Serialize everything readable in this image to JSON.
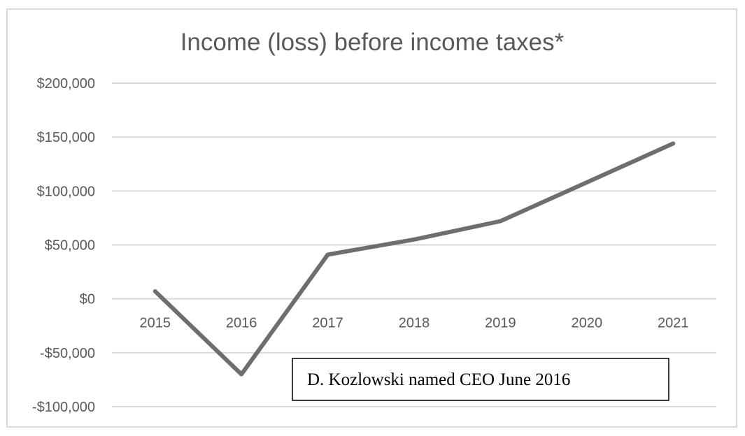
{
  "chart_data": {
    "type": "line",
    "title": "Income (loss) before income taxes*",
    "xlabel": "",
    "ylabel": "",
    "categories": [
      "2015",
      "2016",
      "2017",
      "2018",
      "2019",
      "2020",
      "2021"
    ],
    "series": [
      {
        "values": [
          7000,
          -70000,
          41000,
          55000,
          72000,
          108000,
          144000
        ]
      }
    ],
    "ylim": [
      -100000,
      200000
    ],
    "y_ticks": [
      200000,
      150000,
      100000,
      50000,
      0,
      -50000,
      -100000
    ],
    "y_tick_labels": [
      "$200,000",
      "$150,000",
      "$100,000",
      "$50,000",
      "$0",
      "-$50,000",
      "-$100,000"
    ],
    "grid": true,
    "legend": "none",
    "annotations": [
      {
        "text": "D. Kozlowski named CEO June 2016"
      }
    ],
    "colors": {
      "line": "#6e6e6e",
      "grid": "#d9d9d9",
      "text": "#595959",
      "frame": "#d9d9d9"
    }
  }
}
